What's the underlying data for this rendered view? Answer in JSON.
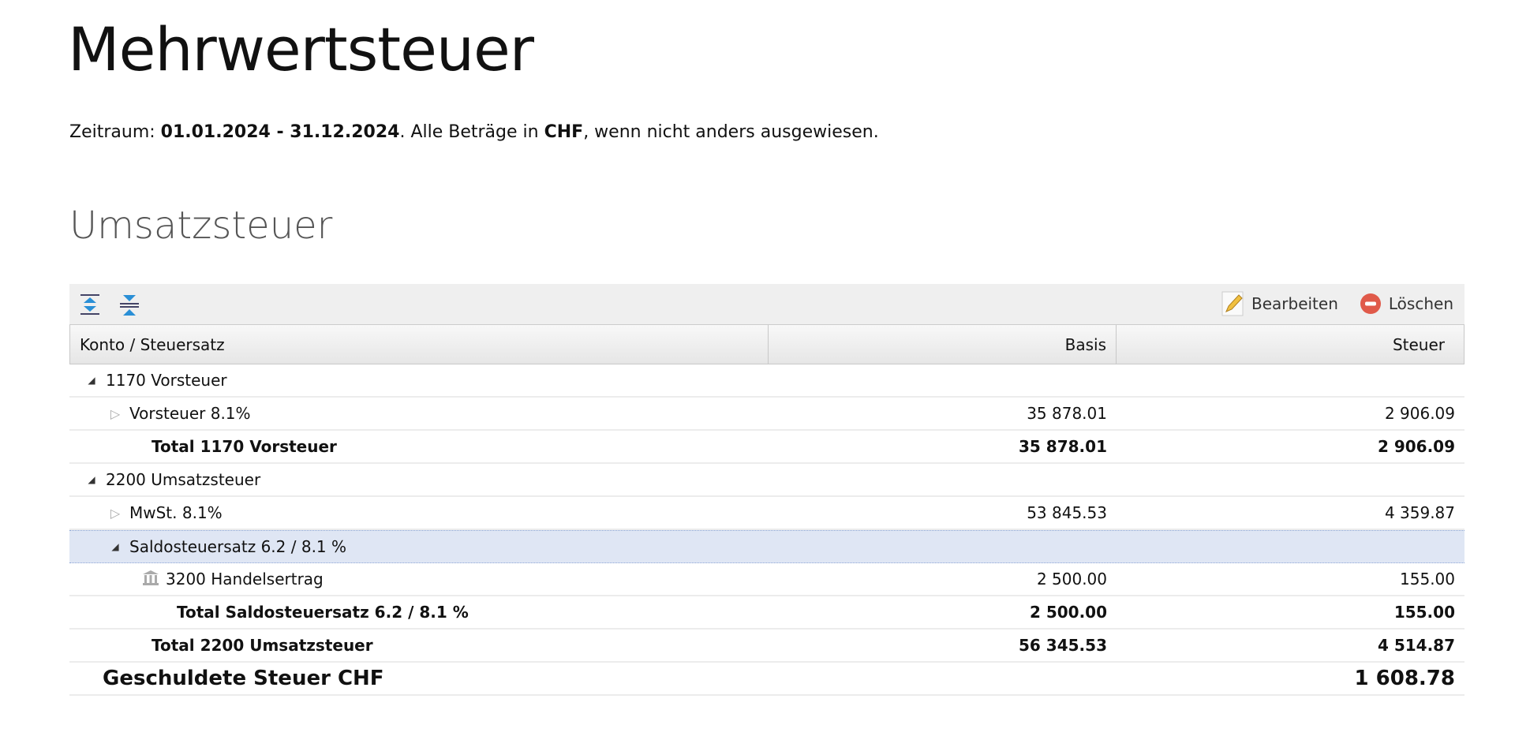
{
  "title": "Mehrwertsteuer",
  "period": {
    "label": "Zeitraum: ",
    "range": "01.01.2024 - 31.12.2024",
    "mid": ". Alle Beträge in ",
    "currency": "CHF",
    "end": ", wenn nicht anders ausgewiesen."
  },
  "section": "Umsatzsteuer",
  "toolbar": {
    "edit": "Bearbeiten",
    "delete": "Löschen"
  },
  "columns": [
    "Konto / Steuersatz",
    "Basis",
    "Steuer"
  ],
  "rows": [
    {
      "label": "1170 Vorsteuer",
      "basis": "",
      "steuer": ""
    },
    {
      "label": "Vorsteuer 8.1%",
      "basis": "35 878.01",
      "steuer": "2 906.09"
    },
    {
      "label": "Total 1170 Vorsteuer",
      "basis": "35 878.01",
      "steuer": "2 906.09"
    },
    {
      "label": "2200 Umsatzsteuer",
      "basis": "",
      "steuer": ""
    },
    {
      "label": "MwSt. 8.1%",
      "basis": "53 845.53",
      "steuer": "4 359.87"
    },
    {
      "label": "Saldosteuersatz 6.2 / 8.1 %",
      "basis": "",
      "steuer": ""
    },
    {
      "label": "3200 Handelsertrag",
      "basis": "2 500.00",
      "steuer": "155.00"
    },
    {
      "label": "Total Saldosteuersatz 6.2 / 8.1 %",
      "basis": "2 500.00",
      "steuer": "155.00"
    },
    {
      "label": "Total 2200 Umsatzsteuer",
      "basis": "56 345.53",
      "steuer": "4 514.87"
    }
  ],
  "grand": {
    "label": "Geschuldete Steuer CHF",
    "steuer": "1 608.78"
  }
}
